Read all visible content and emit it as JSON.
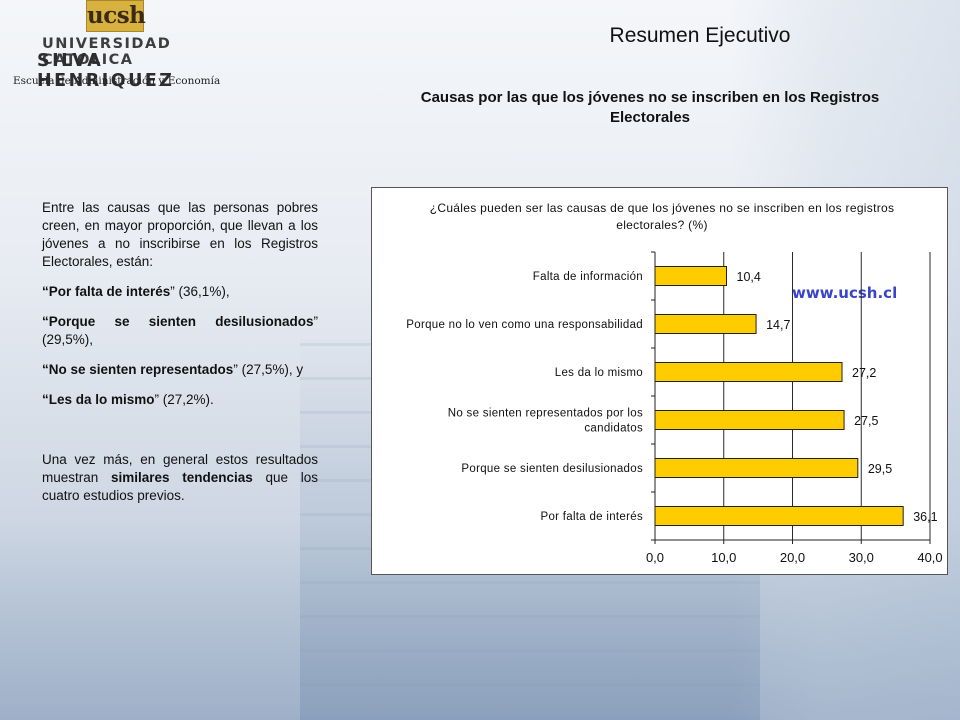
{
  "logo": {
    "mark": "ucsh",
    "line1": "UNIVERSIDAD CATOLICA",
    "line2": "SILVA HENRIQUEZ",
    "subtitle": "Escuela de Administración y Economía"
  },
  "header": {
    "title": "Resumen Ejecutivo",
    "subtitle": "Causas por las que los jóvenes no se inscriben en los Registros Electorales"
  },
  "text": {
    "intro": "Entre las causas que las personas pobres creen, en mayor proporción, que llevan a los jóvenes a no inscribirse en los Registros Electorales, están:",
    "items": [
      {
        "bold": "“Por falta de interés",
        "rest": "” (36,1%),"
      },
      {
        "bold": "“Porque se sienten desilusionados",
        "rest": "” (29,5%),"
      },
      {
        "bold": "“No se sienten representados",
        "rest": "” (27,5%), y"
      },
      {
        "bold": "“Les da lo mismo",
        "rest": "” (27,2%)."
      }
    ],
    "conclusion_pre": "Una vez más, en general estos resultados muestran ",
    "conclusion_bold": "similares tendencias",
    "conclusion_post": " que los cuatro estudios previos."
  },
  "chart_data": {
    "type": "bar",
    "orientation": "horizontal",
    "title": "¿Cuáles pueden ser las causas de que los jóvenes no se inscriben en los registros electorales? (%)",
    "categories": [
      "Falta de información",
      "Porque no lo ven como una responsabilidad",
      "Les da lo mismo",
      "No se sienten representados por los candidatos",
      "Porque se sienten desilusionados",
      "Por falta de interés"
    ],
    "category_lines": [
      [
        "Falta de información"
      ],
      [
        "Porque no lo ven como una responsabilidad"
      ],
      [
        "Les da lo mismo"
      ],
      [
        "No se sienten representados por los",
        "candidatos"
      ],
      [
        "Porque se sienten desilusionados"
      ],
      [
        "Por falta de interés"
      ]
    ],
    "values": [
      10.4,
      14.7,
      27.2,
      27.5,
      29.5,
      36.1
    ],
    "value_labels": [
      "10,4",
      "14,7",
      "27,2",
      "27,5",
      "29,5",
      "36,1"
    ],
    "xlim": [
      0,
      40
    ],
    "xticks": [
      0,
      10,
      20,
      30,
      40
    ],
    "xtick_labels": [
      "0,0",
      "10,0",
      "20,0",
      "30,0",
      "40,0"
    ],
    "grid": true,
    "bar_color": "#ffcc00",
    "watermark": "www.ucsh.cl"
  }
}
